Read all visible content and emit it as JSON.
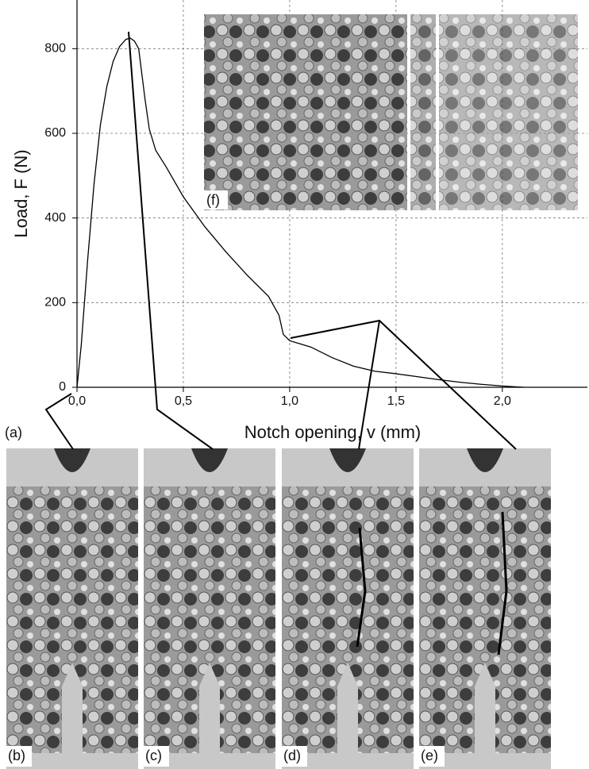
{
  "chart_data": {
    "type": "line",
    "ylabel": "Load, F (N)",
    "xlabel": "Notch opening, v (mm)",
    "x": [
      0,
      0.02,
      0.05,
      0.08,
      0.11,
      0.14,
      0.17,
      0.2,
      0.23,
      0.25,
      0.27,
      0.29,
      0.3,
      0.32,
      0.34,
      0.37,
      0.42,
      0.5,
      0.6,
      0.7,
      0.8,
      0.9,
      0.95,
      0.97,
      1.0,
      1.1,
      1.2,
      1.3,
      1.4,
      1.5,
      1.6,
      1.7,
      1.8,
      1.9,
      2.0,
      2.1
    ],
    "series": [
      {
        "color": "#000000",
        "values": [
          0,
          100,
          300,
          480,
          620,
          710,
          770,
          805,
          822,
          825,
          818,
          800,
          760,
          680,
          610,
          560,
          520,
          450,
          380,
          320,
          265,
          215,
          170,
          125,
          110,
          95,
          70,
          50,
          38,
          32,
          25,
          18,
          12,
          7,
          3,
          0
        ]
      }
    ],
    "xlim": [
      0,
      2.4
    ],
    "ylim": [
      0,
      915
    ],
    "xticks": [
      {
        "value": 0,
        "label": "0,0"
      },
      {
        "value": 0.5,
        "label": "0,5"
      },
      {
        "value": 1.0,
        "label": "1,0"
      },
      {
        "value": 1.5,
        "label": "1,5"
      },
      {
        "value": 2.0,
        "label": "2,0"
      }
    ],
    "yticks": [
      0,
      200,
      400,
      600,
      800
    ],
    "grid": true
  },
  "panels": {
    "a": "(a)",
    "b": "(b)",
    "c": "(c)",
    "d": "(d)",
    "e": "(e)",
    "f": "(f)"
  }
}
